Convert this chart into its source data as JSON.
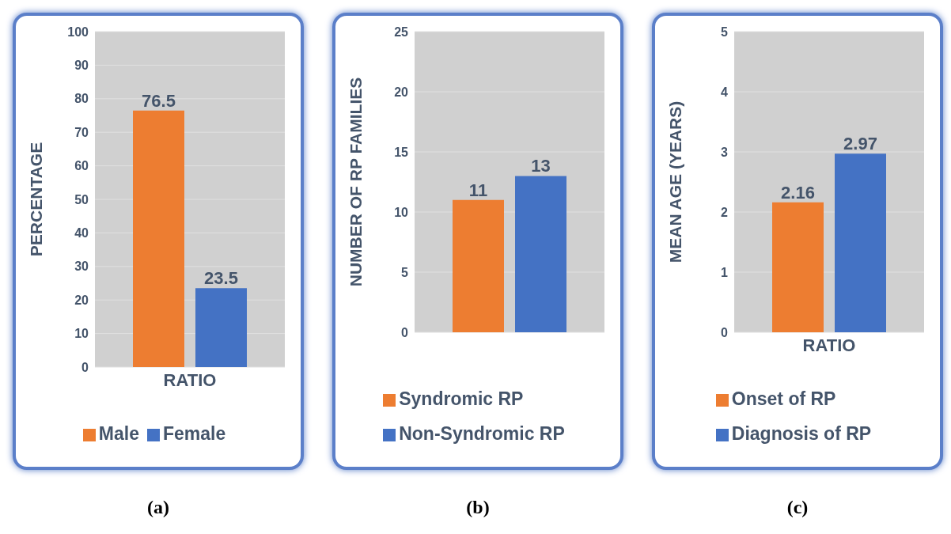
{
  "chart_data": [
    {
      "type": "bar",
      "categories": [
        "RATIO"
      ],
      "ylabel": "PERCENTAGE",
      "ylim": [
        0,
        100
      ],
      "yticks": [
        0,
        10,
        20,
        30,
        40,
        50,
        60,
        70,
        80,
        90,
        100
      ],
      "grid": "y",
      "legend": "bottom",
      "data_labels": true,
      "annotations": [
        "(a)"
      ],
      "series": [
        {
          "name": "Male",
          "color": "#ed7d31",
          "values": [
            76.5
          ]
        },
        {
          "name": "Female",
          "color": "#4472c4",
          "values": [
            23.5
          ]
        }
      ]
    },
    {
      "type": "bar",
      "categories": [
        null
      ],
      "ylabel": "NUMBER OF RP FAMILIES",
      "ylim": [
        0,
        25
      ],
      "yticks": [
        0,
        5,
        10,
        15,
        20,
        25
      ],
      "grid": "y",
      "legend": "bottom",
      "data_labels": true,
      "annotations": [
        "(b)"
      ],
      "series": [
        {
          "name": "Syndromic RP",
          "color": "#ed7d31",
          "values": [
            11
          ]
        },
        {
          "name": "Non-Syndromic RP",
          "color": "#4472c4",
          "values": [
            13
          ]
        }
      ]
    },
    {
      "type": "bar",
      "categories": [
        "RATIO"
      ],
      "ylabel": "MEAN AGE (YEARS)",
      "ylim": [
        0,
        5
      ],
      "yticks": [
        0,
        1,
        2,
        3,
        4,
        5
      ],
      "grid": "y",
      "legend": "bottom",
      "data_labels": true,
      "annotations": [
        "(c)"
      ],
      "series": [
        {
          "name": "Onset of RP",
          "color": "#ed7d31",
          "values": [
            2.16
          ]
        },
        {
          "name": "Diagnosis of RP",
          "color": "#4472c4",
          "values": [
            2.97
          ]
        }
      ]
    }
  ]
}
